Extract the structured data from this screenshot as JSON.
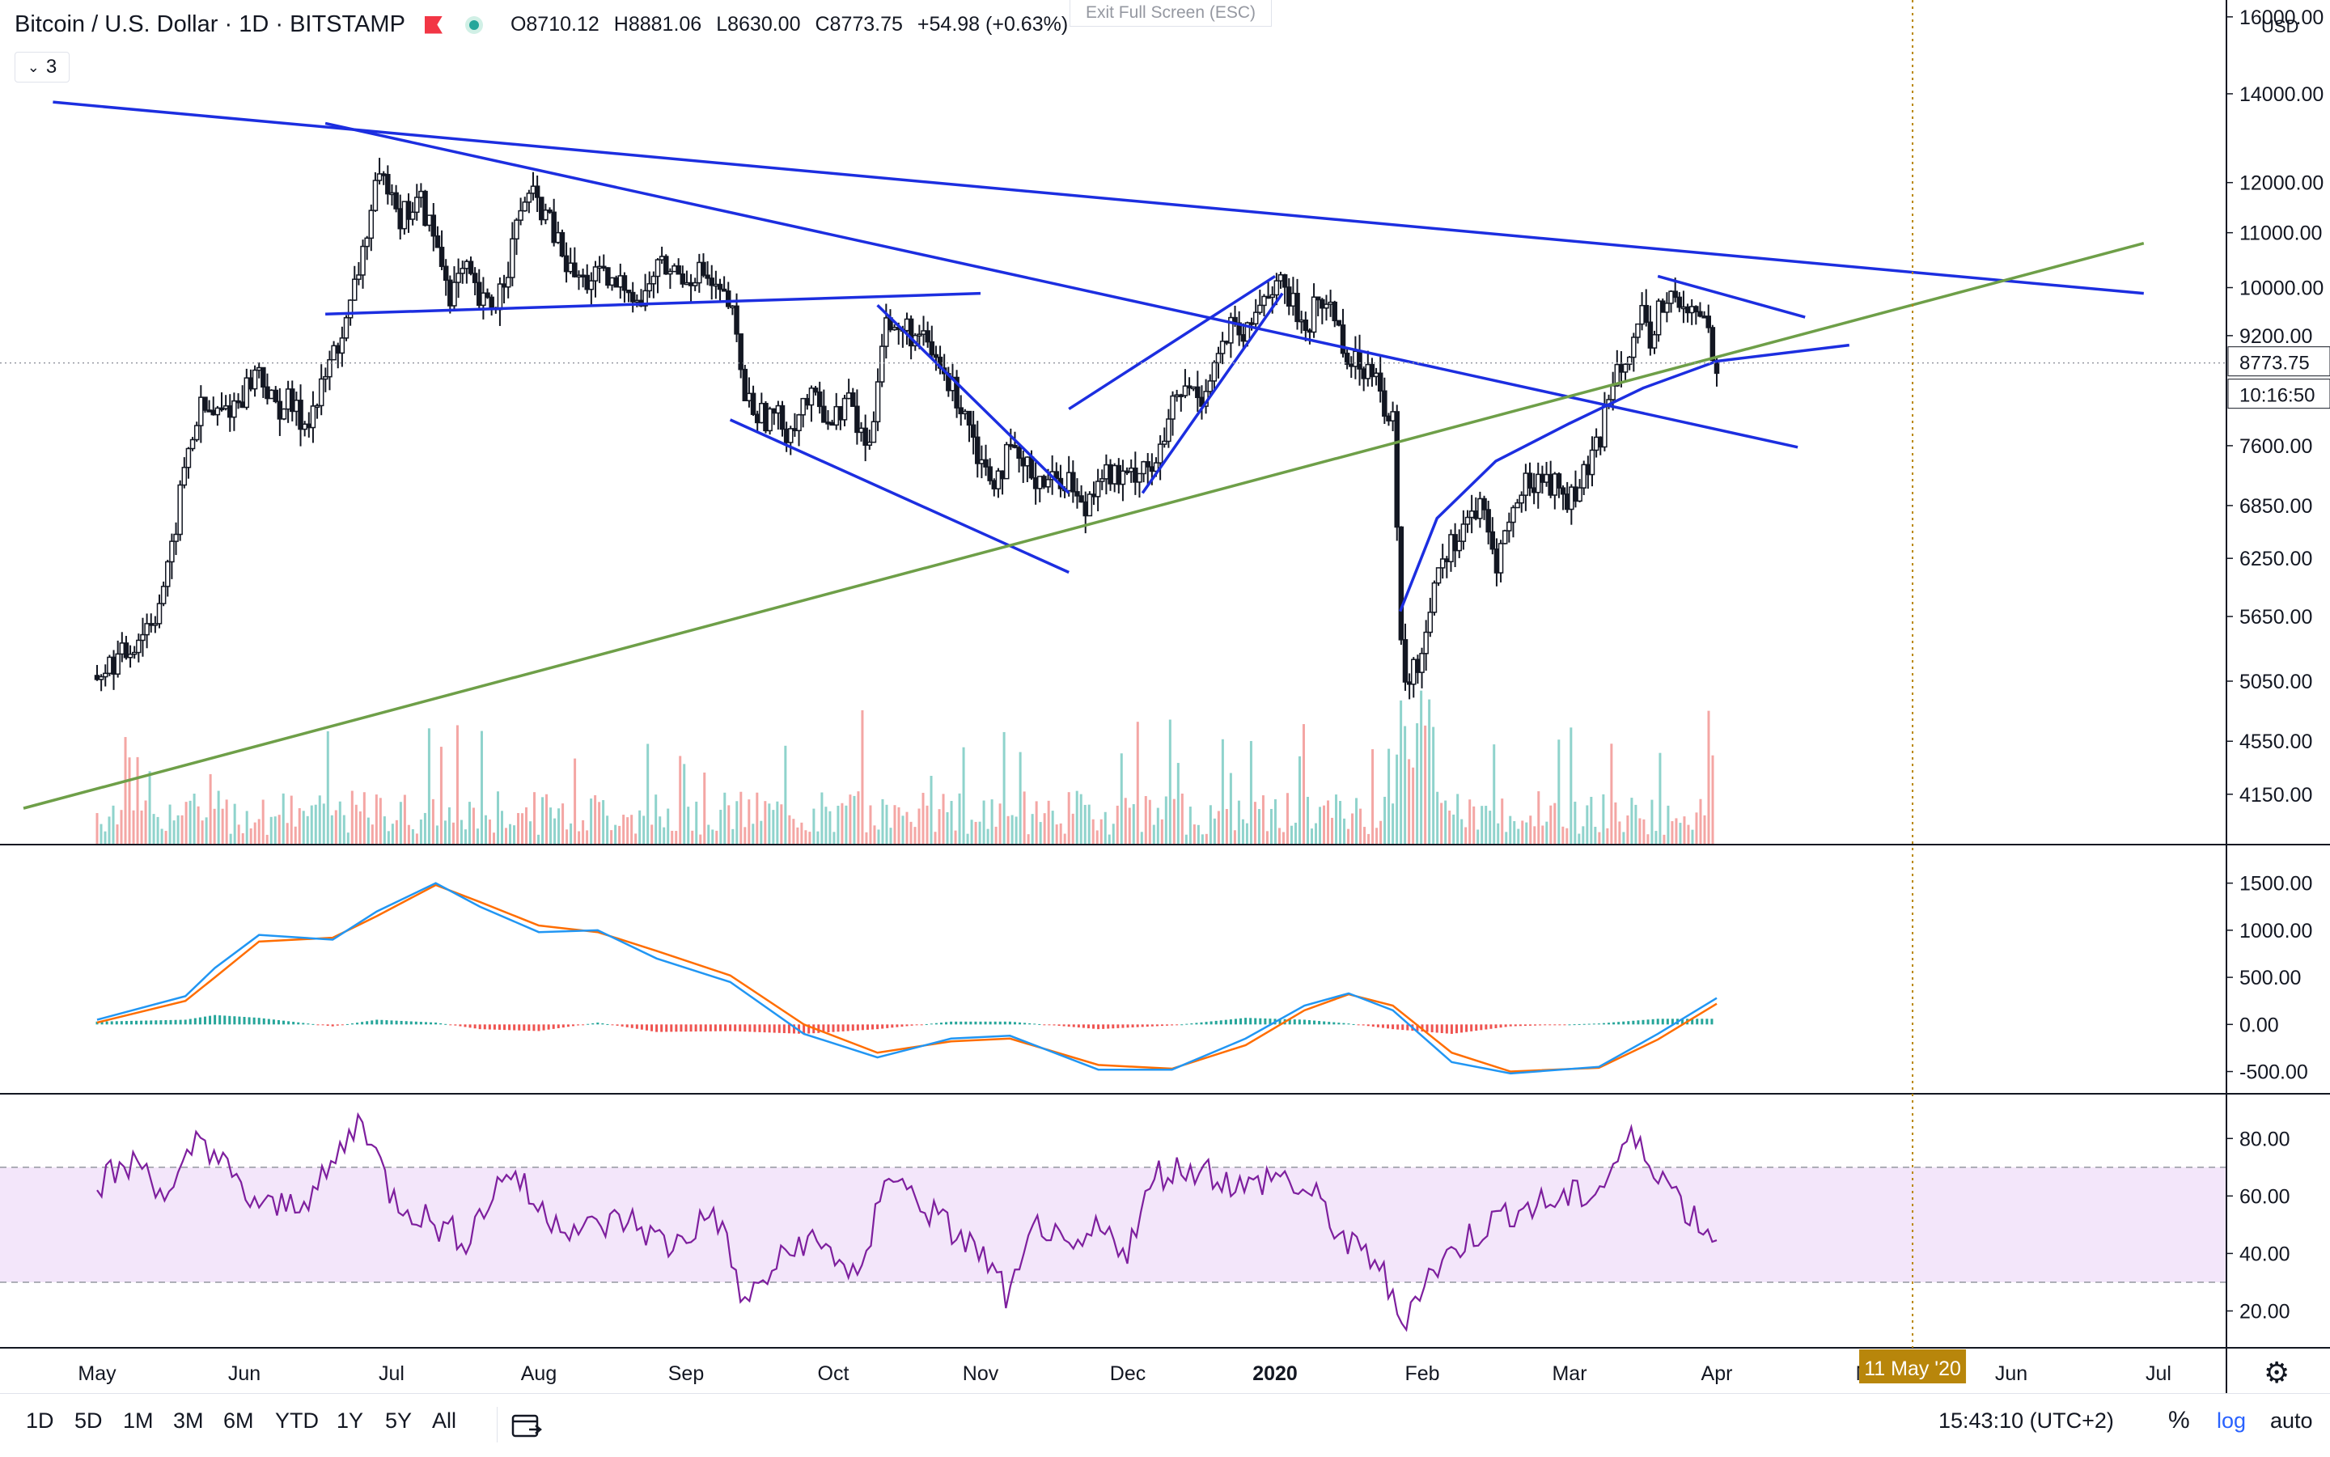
{
  "header": {
    "symbol": "Bitcoin / U.S. Dollar",
    "interval": "1D",
    "exchange": "BITSTAMP",
    "ohlc": [
      {
        "key": "O",
        "value": "8710.12"
      },
      {
        "key": "H",
        "value": "8881.06"
      },
      {
        "key": "L",
        "value": "8630.00"
      },
      {
        "key": "C",
        "value": "8773.75"
      }
    ],
    "change": "+54.98 (+0.63%)",
    "indicator_count": "3",
    "exit_fullscreen": "Exit Full Screen (ESC)"
  },
  "chart_data": {
    "type": "candlestick",
    "symbol": "BTCUSD",
    "scale": "log",
    "currency": "USD",
    "price_axis_ticks": [
      {
        "label": "16000.00",
        "value": 16000
      },
      {
        "label": "14000.00",
        "value": 14000
      },
      {
        "label": "12000.00",
        "value": 12000
      },
      {
        "label": "11000.00",
        "value": 11000
      },
      {
        "label": "10000.00",
        "value": 10000
      },
      {
        "label": "9200.00",
        "value": 9200
      },
      {
        "label": "7600.00",
        "value": 7600
      },
      {
        "label": "6850.00",
        "value": 6850
      },
      {
        "label": "6250.00",
        "value": 6250
      },
      {
        "label": "5650.00",
        "value": 5650
      },
      {
        "label": "5050.00",
        "value": 5050
      },
      {
        "label": "4550.00",
        "value": 4550
      },
      {
        "label": "4150.00",
        "value": 4150
      }
    ],
    "last_price": "8773.75",
    "last_price_value": 8773.75,
    "countdown": "10:16:50",
    "time_axis": [
      {
        "label": "May",
        "month": 0
      },
      {
        "label": "Jun",
        "month": 1
      },
      {
        "label": "Jul",
        "month": 2
      },
      {
        "label": "Aug",
        "month": 3
      },
      {
        "label": "Sep",
        "month": 4
      },
      {
        "label": "Oct",
        "month": 5
      },
      {
        "label": "Nov",
        "month": 6
      },
      {
        "label": "Dec",
        "month": 7
      },
      {
        "label": "2020",
        "month": 8
      },
      {
        "label": "Feb",
        "month": 9
      },
      {
        "label": "Mar",
        "month": 10
      },
      {
        "label": "Apr",
        "month": 11
      },
      {
        "label": "M",
        "month": 12
      },
      {
        "label": "Jun",
        "month": 13
      },
      {
        "label": "Jul",
        "month": 14
      }
    ],
    "cursor_date": "11 May '20",
    "cursor_month": 12.33,
    "price_path": [
      [
        0,
        5100
      ],
      [
        0.2,
        5300
      ],
      [
        0.4,
        5700
      ],
      [
        0.5,
        6200
      ],
      [
        0.6,
        7400
      ],
      [
        0.7,
        8100
      ],
      [
        0.8,
        8000
      ],
      [
        0.95,
        8200
      ],
      [
        1.1,
        8700
      ],
      [
        1.2,
        8100
      ],
      [
        1.3,
        8200
      ],
      [
        1.4,
        7900
      ],
      [
        1.5,
        8200
      ],
      [
        1.6,
        8900
      ],
      [
        1.7,
        9400
      ],
      [
        1.8,
        10600
      ],
      [
        1.9,
        11900
      ],
      [
        2.0,
        12100
      ],
      [
        2.05,
        11300
      ],
      [
        2.2,
        11600
      ],
      [
        2.3,
        10800
      ],
      [
        2.4,
        9900
      ],
      [
        2.5,
        10300
      ],
      [
        2.6,
        9700
      ],
      [
        2.7,
        9700
      ],
      [
        2.8,
        10500
      ],
      [
        2.9,
        11700
      ],
      [
        3.0,
        11600
      ],
      [
        3.1,
        11000
      ],
      [
        3.2,
        10300
      ],
      [
        3.3,
        10100
      ],
      [
        3.4,
        10200
      ],
      [
        3.5,
        10000
      ],
      [
        3.6,
        10100
      ],
      [
        3.7,
        9700
      ],
      [
        3.8,
        10400
      ],
      [
        3.9,
        10300
      ],
      [
        4.0,
        10200
      ],
      [
        4.1,
        10300
      ],
      [
        4.2,
        9900
      ],
      [
        4.3,
        9700
      ],
      [
        4.4,
        8300
      ],
      [
        4.5,
        8000
      ],
      [
        4.6,
        8000
      ],
      [
        4.7,
        7800
      ],
      [
        4.8,
        8200
      ],
      [
        4.9,
        8200
      ],
      [
        5.0,
        7900
      ],
      [
        5.1,
        8300
      ],
      [
        5.15,
        7900
      ],
      [
        5.25,
        7550
      ],
      [
        5.35,
        9600
      ],
      [
        5.4,
        9200
      ],
      [
        5.5,
        9300
      ],
      [
        5.6,
        9100
      ],
      [
        5.7,
        8800
      ],
      [
        5.8,
        8400
      ],
      [
        5.9,
        8100
      ],
      [
        6.0,
        7400
      ],
      [
        6.1,
        7200
      ],
      [
        6.2,
        7500
      ],
      [
        6.3,
        7300
      ],
      [
        6.4,
        7200
      ],
      [
        6.5,
        7150
      ],
      [
        6.6,
        7200
      ],
      [
        6.7,
        6750
      ],
      [
        6.8,
        7300
      ],
      [
        6.9,
        7200
      ],
      [
        7.0,
        7150
      ],
      [
        7.1,
        7400
      ],
      [
        7.2,
        7300
      ],
      [
        7.3,
        8100
      ],
      [
        7.4,
        8400
      ],
      [
        7.5,
        8300
      ],
      [
        7.6,
        8800
      ],
      [
        7.7,
        9300
      ],
      [
        7.8,
        9100
      ],
      [
        7.9,
        9800
      ],
      [
        8.0,
        10100
      ],
      [
        8.1,
        9800
      ],
      [
        8.2,
        9300
      ],
      [
        8.3,
        9800
      ],
      [
        8.4,
        9600
      ],
      [
        8.5,
        8800
      ],
      [
        8.6,
        8700
      ],
      [
        8.7,
        8800
      ],
      [
        8.75,
        7900
      ],
      [
        8.8,
        7900
      ],
      [
        8.85,
        5400
      ],
      [
        8.9,
        5000
      ],
      [
        9.0,
        5300
      ],
      [
        9.1,
        6200
      ],
      [
        9.2,
        6400
      ],
      [
        9.3,
        6700
      ],
      [
        9.4,
        6800
      ],
      [
        9.5,
        6200
      ],
      [
        9.6,
        6700
      ],
      [
        9.7,
        7100
      ],
      [
        9.8,
        7200
      ],
      [
        9.9,
        7100
      ],
      [
        10.0,
        6900
      ],
      [
        10.1,
        7200
      ],
      [
        10.2,
        7600
      ],
      [
        10.3,
        8700
      ],
      [
        10.4,
        9000
      ],
      [
        10.5,
        9500
      ],
      [
        10.55,
        8800
      ],
      [
        10.6,
        9700
      ],
      [
        10.7,
        9800
      ],
      [
        10.8,
        9500
      ],
      [
        10.9,
        9600
      ],
      [
        11.0,
        8800
      ]
    ],
    "volume_bars": 400,
    "drawings": [
      {
        "type": "trendline",
        "color": "#1c2ee0",
        "p1": [
          -0.3,
          13800
        ],
        "p2": [
          13.9,
          9900
        ]
      },
      {
        "type": "trendline",
        "color": "#1c2ee0",
        "p1": [
          1.55,
          13300
        ],
        "p2": [
          11.55,
          7580
        ]
      },
      {
        "type": "trendline",
        "color": "#1c2ee0",
        "p1": [
          1.55,
          9550
        ],
        "p2": [
          6.0,
          9900
        ]
      },
      {
        "type": "trendline",
        "color": "#1c2ee0",
        "p1": [
          4.3,
          7950
        ],
        "p2": [
          6.6,
          6100
        ]
      },
      {
        "type": "trendline",
        "color": "#1c2ee0",
        "p1": [
          5.3,
          9700
        ],
        "p2": [
          6.6,
          7000
        ]
      },
      {
        "type": "trendline",
        "color": "#1c2ee0",
        "p1": [
          6.6,
          8100
        ],
        "p2": [
          8.0,
          10200
        ]
      },
      {
        "type": "trendline",
        "color": "#1c2ee0",
        "p1": [
          7.1,
          7000
        ],
        "p2": [
          8.05,
          9900
        ]
      },
      {
        "type": "trendline",
        "color": "#1c2ee0",
        "p1": [
          10.6,
          10200
        ],
        "p2": [
          11.6,
          9500
        ]
      },
      {
        "type": "trendline",
        "color": "#6e9f48",
        "p1": [
          -0.5,
          4050
        ],
        "p2": [
          13.9,
          10800
        ]
      },
      {
        "type": "arc",
        "color": "#1c2ee0",
        "points": [
          [
            8.85,
            5700
          ],
          [
            9.1,
            6700
          ],
          [
            9.5,
            7400
          ],
          [
            10.0,
            7900
          ],
          [
            10.5,
            8400
          ],
          [
            11.0,
            8800
          ],
          [
            11.9,
            9050
          ]
        ]
      }
    ],
    "macd": {
      "ticks": [
        {
          "label": "1500.00",
          "value": 1500
        },
        {
          "label": "1000.00",
          "value": 1000
        },
        {
          "label": "500.00",
          "value": 500
        },
        {
          "label": "0.00",
          "value": 0
        },
        {
          "label": "-500.00",
          "value": -500
        }
      ],
      "macd_line": [
        [
          0,
          50
        ],
        [
          0.6,
          300
        ],
        [
          0.8,
          600
        ],
        [
          1.1,
          950
        ],
        [
          1.6,
          900
        ],
        [
          1.9,
          1200
        ],
        [
          2.3,
          1500
        ],
        [
          2.6,
          1250
        ],
        [
          3.0,
          980
        ],
        [
          3.4,
          1000
        ],
        [
          3.8,
          700
        ],
        [
          4.3,
          450
        ],
        [
          4.8,
          -100
        ],
        [
          5.3,
          -350
        ],
        [
          5.8,
          -150
        ],
        [
          6.2,
          -120
        ],
        [
          6.8,
          -480
        ],
        [
          7.3,
          -480
        ],
        [
          7.8,
          -150
        ],
        [
          8.2,
          200
        ],
        [
          8.5,
          330
        ],
        [
          8.8,
          150
        ],
        [
          9.2,
          -400
        ],
        [
          9.6,
          -520
        ],
        [
          10.2,
          -450
        ],
        [
          10.6,
          -100
        ],
        [
          11.0,
          280
        ]
      ],
      "signal_line": [
        [
          0,
          20
        ],
        [
          0.6,
          250
        ],
        [
          0.8,
          500
        ],
        [
          1.1,
          880
        ],
        [
          1.6,
          920
        ],
        [
          1.9,
          1150
        ],
        [
          2.3,
          1480
        ],
        [
          2.6,
          1300
        ],
        [
          3.0,
          1050
        ],
        [
          3.4,
          980
        ],
        [
          3.8,
          780
        ],
        [
          4.3,
          520
        ],
        [
          4.8,
          0
        ],
        [
          5.3,
          -300
        ],
        [
          5.8,
          -180
        ],
        [
          6.2,
          -150
        ],
        [
          6.8,
          -430
        ],
        [
          7.3,
          -470
        ],
        [
          7.8,
          -220
        ],
        [
          8.2,
          150
        ],
        [
          8.5,
          320
        ],
        [
          8.8,
          200
        ],
        [
          9.2,
          -300
        ],
        [
          9.6,
          -500
        ],
        [
          10.2,
          -460
        ],
        [
          10.6,
          -160
        ],
        [
          11.0,
          220
        ]
      ]
    },
    "rsi": {
      "ticks": [
        {
          "label": "80.00",
          "value": 80
        },
        {
          "label": "60.00",
          "value": 60
        },
        {
          "label": "40.00",
          "value": 40
        },
        {
          "label": "20.00",
          "value": 20
        }
      ],
      "band": [
        30,
        70
      ],
      "series": [
        [
          0,
          65
        ],
        [
          0.3,
          72
        ],
        [
          0.5,
          58
        ],
        [
          0.7,
          82
        ],
        [
          1.0,
          60
        ],
        [
          1.2,
          55
        ],
        [
          1.5,
          62
        ],
        [
          1.8,
          88
        ],
        [
          2.0,
          60
        ],
        [
          2.3,
          50
        ],
        [
          2.5,
          45
        ],
        [
          2.8,
          70
        ],
        [
          3.0,
          55
        ],
        [
          3.3,
          48
        ],
        [
          3.6,
          52
        ],
        [
          3.9,
          42
        ],
        [
          4.2,
          55
        ],
        [
          4.4,
          22
        ],
        [
          4.6,
          35
        ],
        [
          4.8,
          45
        ],
        [
          5.0,
          40
        ],
        [
          5.2,
          30
        ],
        [
          5.35,
          70
        ],
        [
          5.5,
          62
        ],
        [
          5.8,
          48
        ],
        [
          6.0,
          40
        ],
        [
          6.2,
          24
        ],
        [
          6.4,
          52
        ],
        [
          6.6,
          38
        ],
        [
          6.8,
          48
        ],
        [
          7.0,
          42
        ],
        [
          7.2,
          68
        ],
        [
          7.5,
          70
        ],
        [
          7.8,
          62
        ],
        [
          8.0,
          68
        ],
        [
          8.3,
          58
        ],
        [
          8.5,
          42
        ],
        [
          8.7,
          38
        ],
        [
          8.85,
          15
        ],
        [
          9.0,
          30
        ],
        [
          9.3,
          45
        ],
        [
          9.6,
          55
        ],
        [
          9.9,
          58
        ],
        [
          10.2,
          62
        ],
        [
          10.4,
          80
        ],
        [
          10.6,
          70
        ],
        [
          10.8,
          55
        ],
        [
          11.0,
          45
        ]
      ]
    }
  },
  "toolbar": {
    "ranges": [
      "1D",
      "5D",
      "1M",
      "3M",
      "6M",
      "YTD",
      "1Y",
      "5Y",
      "All"
    ],
    "clock": "15:43:10 (UTC+2)",
    "percent": "%",
    "log": "log",
    "auto": "auto"
  },
  "colors": {
    "up": "#26a69a",
    "down": "#ef5350",
    "trend_blue": "#1c2ee0",
    "trend_green": "#6e9f48",
    "macd": "#2196f3",
    "signal": "#ff6d00",
    "rsi": "#7e1f9e",
    "rsi_band": "#f3e6fa",
    "cursor": "#b8860b"
  }
}
